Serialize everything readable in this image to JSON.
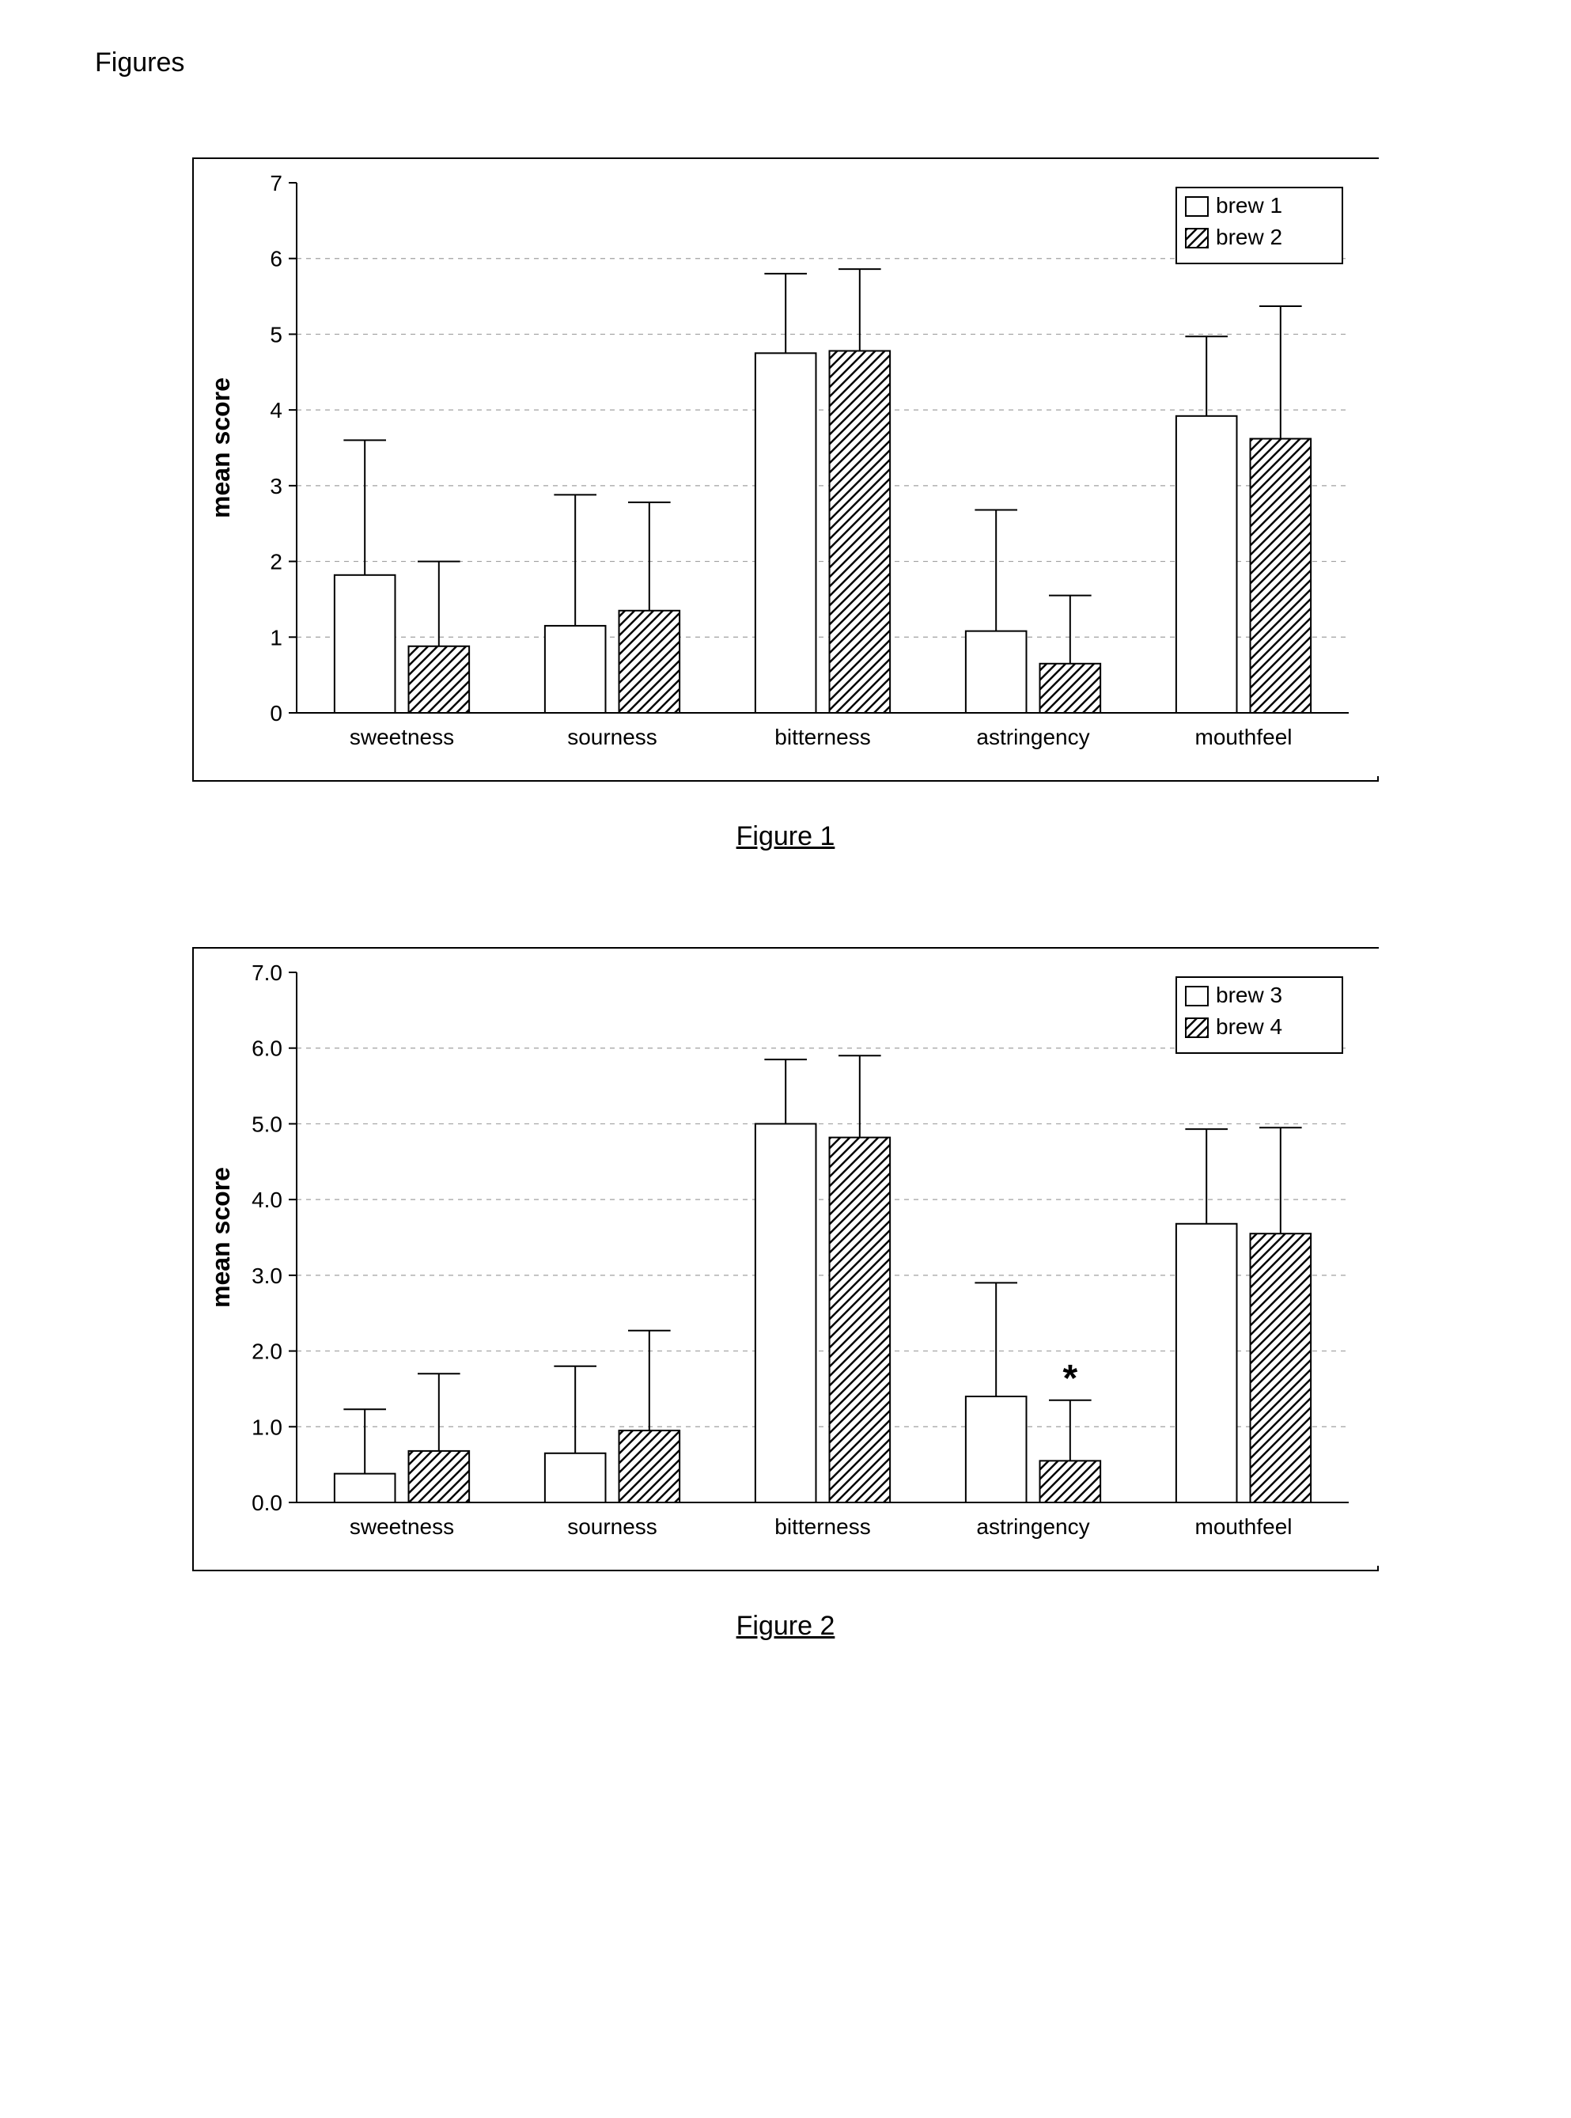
{
  "page_title": "Figures",
  "charts": [
    {
      "caption": "Figure 1",
      "type": "bar",
      "ylabel": "mean score",
      "ylim": [
        0,
        7
      ],
      "ytick_step": 1,
      "tick_decimals": 0,
      "categories": [
        "sweetness",
        "sourness",
        "bitterness",
        "astringency",
        "mouthfeel"
      ],
      "series": [
        {
          "name": "brew 1",
          "fill": "#ffffff",
          "hatched": false,
          "values": [
            1.82,
            1.15,
            4.75,
            1.08,
            3.92
          ],
          "errors": [
            1.78,
            1.73,
            1.05,
            1.6,
            1.05
          ]
        },
        {
          "name": "brew 2",
          "fill": "#ffffff",
          "hatched": true,
          "values": [
            0.88,
            1.35,
            4.78,
            0.65,
            3.62
          ],
          "errors": [
            1.12,
            1.43,
            1.08,
            0.9,
            1.75
          ]
        }
      ],
      "bar_stroke": "#000000",
      "bar_stroke_width": 2,
      "grid_color": "#a0a0a0",
      "grid_dash": "6,6",
      "axis_color": "#000000",
      "label_fontsize": 28,
      "tick_fontsize": 28,
      "legend_fontsize": 28,
      "ylabel_fontsize": 32,
      "background_color": "#ffffff",
      "annotations": []
    },
    {
      "caption": "Figure 2",
      "type": "bar",
      "ylabel": "mean score",
      "ylim": [
        0,
        7
      ],
      "ytick_step": 1,
      "tick_decimals": 1,
      "categories": [
        "sweetness",
        "sourness",
        "bitterness",
        "astringency",
        "mouthfeel"
      ],
      "series": [
        {
          "name": "brew 3",
          "fill": "#ffffff",
          "hatched": false,
          "values": [
            0.38,
            0.65,
            5.0,
            1.4,
            3.68
          ],
          "errors": [
            0.85,
            1.15,
            0.85,
            1.5,
            1.25
          ]
        },
        {
          "name": "brew 4",
          "fill": "#ffffff",
          "hatched": true,
          "values": [
            0.68,
            0.95,
            4.82,
            0.55,
            3.55
          ],
          "errors": [
            1.02,
            1.32,
            1.08,
            0.8,
            1.4
          ]
        }
      ],
      "bar_stroke": "#000000",
      "bar_stroke_width": 2,
      "grid_color": "#a0a0a0",
      "grid_dash": "6,6",
      "axis_color": "#000000",
      "label_fontsize": 28,
      "tick_fontsize": 28,
      "legend_fontsize": 28,
      "ylabel_fontsize": 32,
      "background_color": "#ffffff",
      "annotations": [
        {
          "text": "*",
          "category_index": 3,
          "series_index": 1,
          "fontsize": 48,
          "fontweight": "bold",
          "y_offset": 12
        }
      ]
    }
  ]
}
